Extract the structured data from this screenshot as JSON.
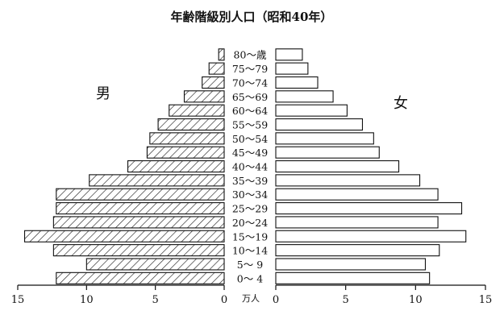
{
  "chart_data": {
    "type": "bar",
    "orientation": "horizontal",
    "layout": "population-pyramid",
    "title": "年齢階級別人口（昭和40年）",
    "unit_label": "万人",
    "categories": [
      "0～ 4",
      "5～ 9",
      "10～14",
      "15～19",
      "20～24",
      "25～29",
      "30～34",
      "35～39",
      "40～44",
      "45～49",
      "50～54",
      "55～59",
      "60～64",
      "65～69",
      "70～74",
      "75～79",
      "80～歳"
    ],
    "series": [
      {
        "name": "男",
        "side": "left",
        "fill": "hatched",
        "values": [
          12.2,
          10.0,
          12.4,
          14.5,
          12.4,
          12.2,
          12.2,
          9.8,
          7.0,
          5.6,
          5.4,
          4.8,
          4.0,
          2.9,
          1.6,
          1.1,
          0.4
        ]
      },
      {
        "name": "女",
        "side": "right",
        "fill": "white",
        "values": [
          11.0,
          10.7,
          11.7,
          13.6,
          11.6,
          13.3,
          11.6,
          10.3,
          8.8,
          7.4,
          7.0,
          6.2,
          5.1,
          4.1,
          3.0,
          2.3,
          1.9
        ]
      }
    ],
    "x_range": [
      0,
      15
    ],
    "x_ticks": [
      0,
      5,
      10,
      15
    ],
    "grid": false,
    "legend": "inline-labels"
  }
}
